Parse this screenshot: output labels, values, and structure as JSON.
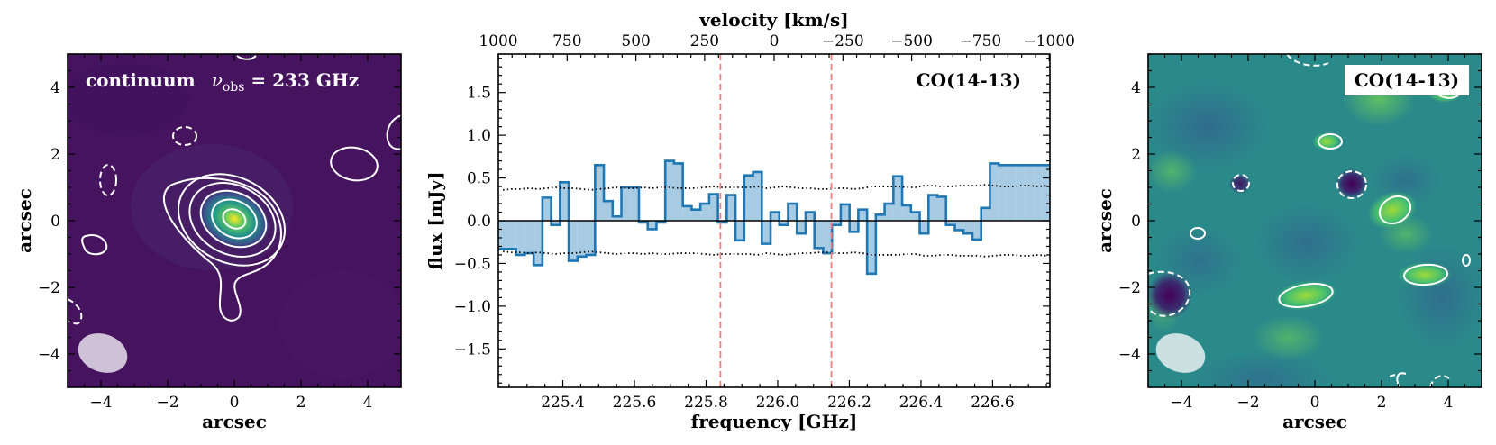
{
  "chart_data": [
    {
      "type": "heatmap",
      "panel": "left",
      "label": "continuum",
      "label_symbol": "ν",
      "label_sub": "obs",
      "label_value": " = 233 GHz",
      "xlabel": "arcsec",
      "ylabel": "arcsec",
      "xlim": [
        -5,
        5
      ],
      "ylim": [
        -5,
        5
      ],
      "xticks": [
        -4,
        -2,
        0,
        2,
        4
      ],
      "yticks": [
        -4,
        -2,
        0,
        2,
        4
      ],
      "colormap": "viridis",
      "background_color": "#46135e",
      "source_peak": [
        0.0,
        0.1
      ],
      "contour_levels": 6,
      "beam": {
        "x": -4.0,
        "y": -4.0,
        "major_arcsec": 1.6,
        "minor_arcsec": 1.1,
        "pa_deg": -20
      }
    },
    {
      "type": "line",
      "panel": "middle",
      "drawstyle": "steps-mid",
      "label": "CO(14-13)",
      "xlabel": "frequency [GHz]",
      "ylabel": "flux [mJy]",
      "top_xlabel": "velocity [km/s]",
      "xlim": [
        225.22,
        226.76
      ],
      "ylim": [
        -1.95,
        1.95
      ],
      "xticks": [
        225.4,
        225.6,
        225.8,
        226.0,
        226.2,
        226.4,
        226.6
      ],
      "xtick_labels": [
        "225.4",
        "225.6",
        "225.8",
        "226.0",
        "226.2",
        "226.4",
        "226.6"
      ],
      "yticks": [
        -1.5,
        -1.0,
        -0.5,
        0.0,
        0.5,
        1.0,
        1.5
      ],
      "ytick_labels": [
        "−1.5",
        "−1.0",
        "−0.5",
        "0.0",
        "0.5",
        "1.0",
        "1.5"
      ],
      "top_xtick_freqs": [
        225.22,
        225.412,
        225.604,
        225.796,
        225.99,
        226.182,
        226.374,
        226.566,
        226.758
      ],
      "top_xtick_labels": [
        "1000",
        "750",
        "500",
        "250",
        "0",
        "−250",
        "−500",
        "−750",
        "−1000"
      ],
      "line_window_ghz": [
        225.84,
        226.15
      ],
      "series": {
        "name": "flux",
        "color": "#1f77b4",
        "fill_color": "#a6cbe3",
        "x": [
          225.233,
          225.257,
          225.282,
          225.306,
          225.331,
          225.355,
          225.38,
          225.404,
          225.429,
          225.453,
          225.478,
          225.502,
          225.527,
          225.551,
          225.576,
          225.6,
          225.625,
          225.649,
          225.674,
          225.698,
          225.723,
          225.747,
          225.772,
          225.796,
          225.821,
          225.845,
          225.87,
          225.894,
          225.919,
          225.943,
          225.968,
          225.992,
          226.017,
          226.041,
          226.066,
          226.09,
          226.115,
          226.139,
          226.164,
          226.188,
          226.213,
          226.237,
          226.262,
          226.286,
          226.311,
          226.335,
          226.36,
          226.384,
          226.409,
          226.433,
          226.458,
          226.482,
          226.507,
          226.531,
          226.556,
          226.58,
          226.605,
          226.629,
          226.654,
          226.678,
          226.703,
          226.727,
          226.752
        ],
        "values": [
          -0.33,
          -0.33,
          -0.4,
          -0.38,
          -0.52,
          0.27,
          -0.05,
          0.45,
          -0.47,
          -0.42,
          -0.4,
          0.65,
          0.23,
          0.05,
          0.39,
          0.39,
          -0.02,
          -0.1,
          -0.02,
          0.7,
          0.67,
          0.17,
          0.13,
          0.2,
          0.31,
          -0.02,
          0.3,
          -0.23,
          0.53,
          0.57,
          -0.27,
          0.1,
          -0.05,
          0.2,
          -0.15,
          0.1,
          -0.32,
          -0.38,
          -0.05,
          0.19,
          -0.13,
          0.13,
          -0.62,
          0.07,
          0.2,
          0.52,
          0.18,
          0.1,
          -0.15,
          0.3,
          0.28,
          -0.05,
          -0.11,
          -0.15,
          -0.22,
          0.15,
          0.67,
          0.65,
          0.65,
          0.65,
          0.65,
          0.65,
          0.65
        ]
      },
      "noise_upper": [
        0.36,
        0.37,
        0.37,
        0.38,
        0.37,
        0.38,
        0.39,
        0.38,
        0.38,
        0.37,
        0.36,
        0.37,
        0.38,
        0.39,
        0.38,
        0.38,
        0.39,
        0.38,
        0.39,
        0.39,
        0.38,
        0.38,
        0.38,
        0.39,
        0.4,
        0.39,
        0.39,
        0.39,
        0.39,
        0.4,
        0.38,
        0.39,
        0.4,
        0.39,
        0.38,
        0.38,
        0.37,
        0.37,
        0.38,
        0.38,
        0.37,
        0.38,
        0.4,
        0.4,
        0.4,
        0.4,
        0.39,
        0.39,
        0.41,
        0.41,
        0.4,
        0.4,
        0.41,
        0.41,
        0.41,
        0.42,
        0.41,
        0.4,
        0.4,
        0.41,
        0.41,
        0.4,
        0.41
      ],
      "noise_lower": [
        -0.36,
        -0.37,
        -0.37,
        -0.38,
        -0.37,
        -0.38,
        -0.39,
        -0.38,
        -0.38,
        -0.37,
        -0.36,
        -0.37,
        -0.38,
        -0.39,
        -0.38,
        -0.38,
        -0.39,
        -0.38,
        -0.39,
        -0.39,
        -0.38,
        -0.38,
        -0.38,
        -0.39,
        -0.4,
        -0.39,
        -0.39,
        -0.39,
        -0.39,
        -0.4,
        -0.38,
        -0.39,
        -0.4,
        -0.39,
        -0.38,
        -0.38,
        -0.37,
        -0.37,
        -0.38,
        -0.38,
        -0.37,
        -0.38,
        -0.4,
        -0.4,
        -0.4,
        -0.4,
        -0.39,
        -0.39,
        -0.41,
        -0.41,
        -0.4,
        -0.4,
        -0.41,
        -0.41,
        -0.41,
        -0.42,
        -0.41,
        -0.4,
        -0.4,
        -0.41,
        -0.41,
        -0.4,
        -0.41
      ]
    },
    {
      "type": "heatmap",
      "panel": "right",
      "label": "CO(14-13)",
      "xlabel": "arcsec",
      "ylabel": "arcsec",
      "xlim": [
        -5,
        5
      ],
      "ylim": [
        -5,
        5
      ],
      "xticks": [
        -4,
        -2,
        0,
        2,
        4
      ],
      "yticks": [
        -4,
        -2,
        0,
        2,
        4
      ],
      "colormap": "viridis",
      "background_color": "#2a8a8a",
      "beam": {
        "x": -4.2,
        "y": -4.0,
        "major_arcsec": 1.6,
        "minor_arcsec": 1.1,
        "pa_deg": -20
      }
    }
  ]
}
